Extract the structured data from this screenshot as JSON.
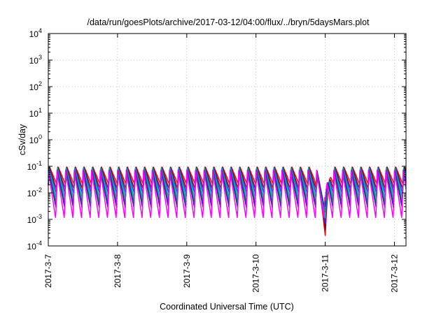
{
  "chart_data": {
    "type": "line",
    "title": "/data/run/goesPlots/archive/2017-03-12/04:00/flux/../bryn/5daysMars.plot",
    "xlabel": "Coordinated Universal Time (UTC)",
    "ylabel": "cSv/day",
    "y_scale": "log",
    "ylim": [
      0.0001,
      10000
    ],
    "y_ticks": [
      {
        "base": "10",
        "exp": "-4"
      },
      {
        "base": "10",
        "exp": "-3"
      },
      {
        "base": "10",
        "exp": "-2"
      },
      {
        "base": "10",
        "exp": "-1"
      },
      {
        "base": "10",
        "exp": "0"
      },
      {
        "base": "10",
        "exp": "1"
      },
      {
        "base": "10",
        "exp": "2"
      },
      {
        "base": "10",
        "exp": "3"
      },
      {
        "base": "10",
        "exp": "4"
      }
    ],
    "x_ticks": [
      "2017-3-7",
      "2017-3-8",
      "2017-3-9",
      "2017-3-10",
      "2017-3-11",
      "2017-3-12"
    ],
    "xlim": [
      "2017-03-07 00:00",
      "2017-03-12 04:00"
    ],
    "grid": true,
    "legend": "none",
    "peak_level": 0.1,
    "oscillation_period_hours": 3,
    "dip_event": {
      "time": "2017-03-11 00:00",
      "min_value": 0.00025
    },
    "series": [
      {
        "color": "#ff0000",
        "trough_value": 0.02
      },
      {
        "color": "#8b0000",
        "trough_value": 0.013
      },
      {
        "color": "#3030ff",
        "trough_value": 0.009
      },
      {
        "color": "#00b8b8",
        "trough_value": 0.006
      },
      {
        "color": "#009060",
        "trough_value": 0.004
      },
      {
        "color": "#2020a0",
        "trough_value": 0.0028
      },
      {
        "color": "#ff00ff",
        "trough_value": 0.001
      }
    ]
  }
}
